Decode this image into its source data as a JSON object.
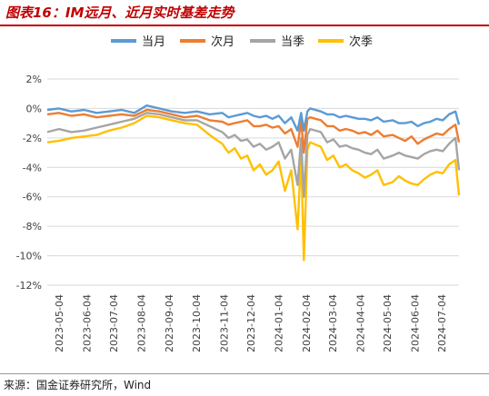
{
  "figure": {
    "title": "图表16：IM远月、近月实时基差走势",
    "source": "来源：国金证券研究所，Wind"
  },
  "colors": {
    "title": "#c00000",
    "series": [
      "#5b9bd5",
      "#ed7d31",
      "#a5a5a5",
      "#ffc000"
    ],
    "grid": "#d9d9d9",
    "axis_text": "#404040"
  },
  "chart_data": {
    "type": "line",
    "title": "",
    "xlabel": "",
    "ylabel": "",
    "ylim": [
      -12,
      2
    ],
    "yticks": [
      2,
      0,
      -2,
      -4,
      -6,
      -8,
      -10,
      -12
    ],
    "ytick_labels": [
      "2%",
      "0%",
      "-2%",
      "-4%",
      "-6%",
      "-8%",
      "-10%",
      "-12%"
    ],
    "x_ticks": [
      "2023-05-04",
      "2023-06-04",
      "2023-07-04",
      "2023-08-04",
      "2023-09-04",
      "2023-10-04",
      "2023-11-04",
      "2023-12-04",
      "2024-01-04",
      "2024-02-04",
      "2024-03-04",
      "2024-04-04",
      "2024-05-04",
      "2024-06-04",
      "2024-07-04"
    ],
    "legend_position": "top",
    "grid": "horizontal",
    "x": [
      "2023-04-21",
      "2023-05-04",
      "2023-05-18",
      "2023-06-01",
      "2023-06-15",
      "2023-06-29",
      "2023-07-13",
      "2023-07-27",
      "2023-08-10",
      "2023-08-24",
      "2023-09-07",
      "2023-09-21",
      "2023-10-05",
      "2023-10-19",
      "2023-11-02",
      "2023-11-09",
      "2023-11-16",
      "2023-11-23",
      "2023-11-30",
      "2023-12-07",
      "2023-12-14",
      "2023-12-21",
      "2023-12-28",
      "2024-01-04",
      "2024-01-11",
      "2024-01-18",
      "2024-01-25",
      "2024-01-29",
      "2024-02-01",
      "2024-02-05",
      "2024-02-08",
      "2024-02-20",
      "2024-02-27",
      "2024-03-05",
      "2024-03-12",
      "2024-03-19",
      "2024-03-26",
      "2024-04-02",
      "2024-04-09",
      "2024-04-16",
      "2024-04-23",
      "2024-04-30",
      "2024-05-10",
      "2024-05-17",
      "2024-05-24",
      "2024-05-31",
      "2024-06-07",
      "2024-06-14",
      "2024-06-21",
      "2024-06-28",
      "2024-07-05",
      "2024-07-12",
      "2024-07-19",
      "2024-07-23"
    ],
    "series": [
      {
        "name": "当月",
        "values": [
          -0.1,
          0,
          -0.2,
          -0.1,
          -0.3,
          -0.2,
          -0.1,
          -0.3,
          0.2,
          0,
          -0.2,
          -0.3,
          -0.2,
          -0.4,
          -0.3,
          -0.6,
          -0.5,
          -0.4,
          -0.3,
          -0.5,
          -0.6,
          -0.5,
          -0.7,
          -0.5,
          -1.0,
          -0.6,
          -1.5,
          -0.3,
          -1.5,
          -0.2,
          0,
          -0.2,
          -0.4,
          -0.4,
          -0.6,
          -0.5,
          -0.6,
          -0.7,
          -0.7,
          -0.8,
          -0.6,
          -0.9,
          -0.8,
          -1.0,
          -1.0,
          -0.9,
          -1.2,
          -1.0,
          -0.9,
          -0.7,
          -0.8,
          -0.4,
          -0.2,
          -1.1
        ]
      },
      {
        "name": "次月",
        "values": [
          -0.4,
          -0.3,
          -0.5,
          -0.4,
          -0.6,
          -0.5,
          -0.4,
          -0.5,
          -0.1,
          -0.2,
          -0.4,
          -0.6,
          -0.5,
          -0.8,
          -0.9,
          -1.1,
          -1.0,
          -0.9,
          -0.8,
          -1.2,
          -1.2,
          -1.1,
          -1.3,
          -1.2,
          -1.7,
          -1.4,
          -2.6,
          -0.8,
          -3.0,
          -0.7,
          -0.6,
          -0.8,
          -1.2,
          -1.2,
          -1.5,
          -1.4,
          -1.5,
          -1.7,
          -1.6,
          -1.8,
          -1.5,
          -1.9,
          -1.8,
          -2.0,
          -2.2,
          -1.9,
          -2.4,
          -2.1,
          -1.9,
          -1.7,
          -1.8,
          -1.4,
          -1.1,
          -2.3
        ]
      },
      {
        "name": "当季",
        "values": [
          -1.6,
          -1.4,
          -1.6,
          -1.5,
          -1.3,
          -1.1,
          -0.9,
          -0.7,
          -0.3,
          -0.4,
          -0.6,
          -0.8,
          -0.8,
          -1.2,
          -1.6,
          -2.0,
          -1.8,
          -2.2,
          -2.1,
          -2.6,
          -2.4,
          -2.8,
          -2.6,
          -2.3,
          -3.4,
          -2.8,
          -5.2,
          -2.0,
          -6.0,
          -1.8,
          -1.4,
          -1.6,
          -2.3,
          -2.1,
          -2.6,
          -2.5,
          -2.7,
          -2.8,
          -3.0,
          -3.1,
          -2.8,
          -3.4,
          -3.2,
          -3.0,
          -3.2,
          -3.3,
          -3.4,
          -3.1,
          -2.9,
          -2.8,
          -2.9,
          -2.4,
          -2.0,
          -4.2
        ]
      },
      {
        "name": "次季",
        "values": [
          -2.3,
          -2.2,
          -2.0,
          -1.9,
          -1.8,
          -1.5,
          -1.3,
          -1.0,
          -0.5,
          -0.6,
          -0.8,
          -1.0,
          -1.1,
          -1.8,
          -2.4,
          -3.0,
          -2.7,
          -3.4,
          -3.2,
          -4.2,
          -3.8,
          -4.5,
          -4.2,
          -3.6,
          -5.6,
          -4.2,
          -8.2,
          -3.1,
          -10.3,
          -2.8,
          -2.3,
          -2.6,
          -3.5,
          -3.2,
          -4.0,
          -3.8,
          -4.2,
          -4.4,
          -4.7,
          -4.5,
          -4.2,
          -5.2,
          -5.0,
          -4.6,
          -4.9,
          -5.1,
          -5.2,
          -4.8,
          -4.5,
          -4.3,
          -4.4,
          -3.8,
          -3.5,
          -5.9
        ]
      }
    ]
  }
}
